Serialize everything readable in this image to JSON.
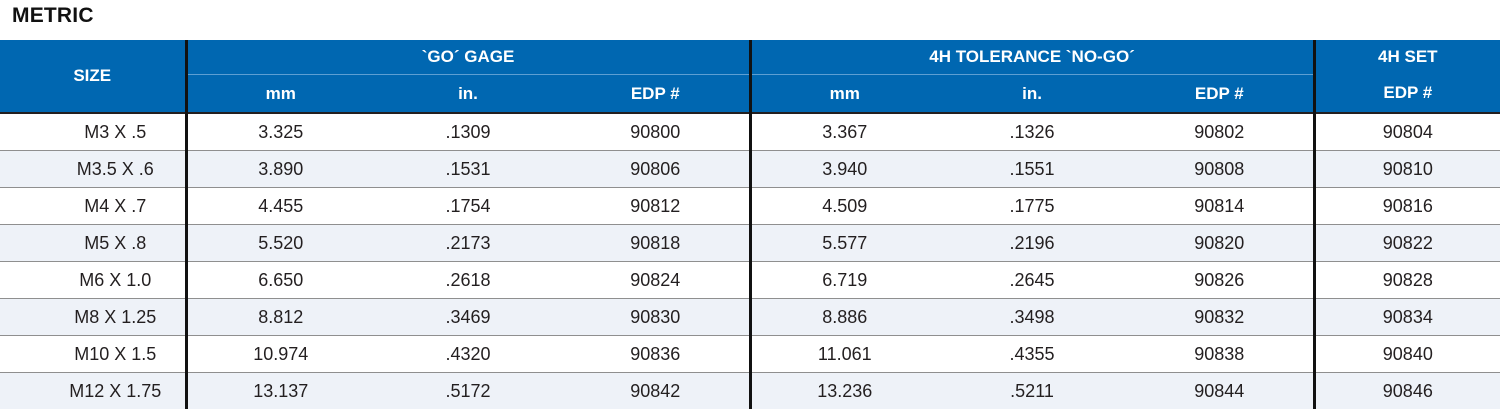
{
  "title": "METRIC",
  "columns": {
    "size": "SIZE",
    "go_group": "`GO´ GAGE",
    "nogo_group": "4H TOLERANCE `NO-GO´",
    "set_group": "4H SET",
    "mm": "mm",
    "in": "in.",
    "edp": "EDP #"
  },
  "rows": [
    {
      "size": "M3 X .5",
      "go_mm": "3.325",
      "go_in": ".1309",
      "go_edp": "90800",
      "nogo_mm": "3.367",
      "nogo_in": ".1326",
      "nogo_edp": "90802",
      "set_edp": "90804"
    },
    {
      "size": "M3.5 X .6",
      "go_mm": "3.890",
      "go_in": ".1531",
      "go_edp": "90806",
      "nogo_mm": "3.940",
      "nogo_in": ".1551",
      "nogo_edp": "90808",
      "set_edp": "90810"
    },
    {
      "size": "M4 X .7",
      "go_mm": "4.455",
      "go_in": ".1754",
      "go_edp": "90812",
      "nogo_mm": "4.509",
      "nogo_in": ".1775",
      "nogo_edp": "90814",
      "set_edp": "90816"
    },
    {
      "size": "M5 X .8",
      "go_mm": "5.520",
      "go_in": ".2173",
      "go_edp": "90818",
      "nogo_mm": "5.577",
      "nogo_in": ".2196",
      "nogo_edp": "90820",
      "set_edp": "90822"
    },
    {
      "size": "M6 X 1.0",
      "go_mm": "6.650",
      "go_in": ".2618",
      "go_edp": "90824",
      "nogo_mm": "6.719",
      "nogo_in": ".2645",
      "nogo_edp": "90826",
      "set_edp": "90828"
    },
    {
      "size": "M8 X 1.25",
      "go_mm": "8.812",
      "go_in": ".3469",
      "go_edp": "90830",
      "nogo_mm": "8.886",
      "nogo_in": ".3498",
      "nogo_edp": "90832",
      "set_edp": "90834"
    },
    {
      "size": "M10 X 1.5",
      "go_mm": "10.974",
      "go_in": ".4320",
      "go_edp": "90836",
      "nogo_mm": "11.061",
      "nogo_in": ".4355",
      "nogo_edp": "90838",
      "set_edp": "90840"
    },
    {
      "size": "M12 X 1.75",
      "go_mm": "13.137",
      "go_in": ".5172",
      "go_edp": "90842",
      "nogo_mm": "13.236",
      "nogo_in": ".5211",
      "nogo_edp": "90844",
      "set_edp": "90846"
    }
  ],
  "colors": {
    "header_blue": "#0067b1",
    "stripe": "#eef2f8",
    "divider": "#111111"
  }
}
